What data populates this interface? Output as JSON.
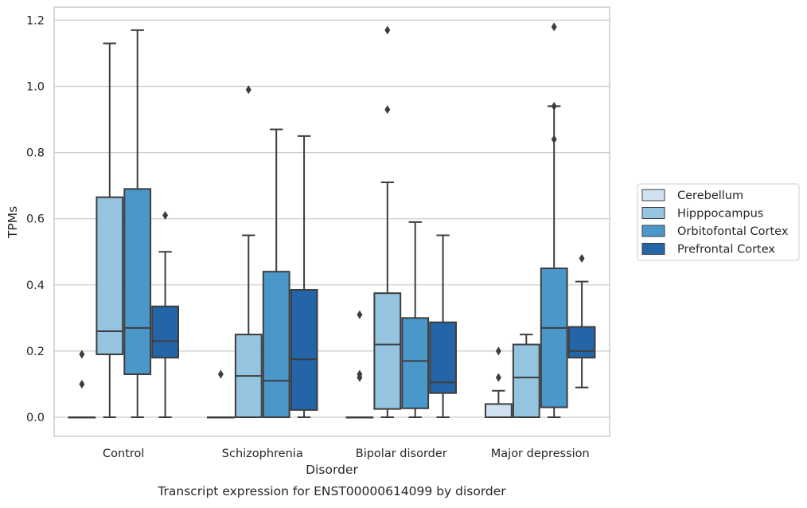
{
  "chart_data": {
    "type": "boxplot",
    "title": "Transcript expression for ENST00000614099 by disorder",
    "xlabel": "Disorder",
    "ylabel": "TPMs",
    "ylim": [
      -0.055,
      1.24
    ],
    "yticks": [
      "0.0",
      "0.2",
      "0.4",
      "0.6",
      "0.8",
      "1.0",
      "1.2"
    ],
    "grid": "horizontal",
    "legend_position": "right",
    "categories": [
      "Control",
      "Schizophrenia",
      "Bipolar disorder",
      "Major depression"
    ],
    "series": [
      {
        "name": "Cerebellum",
        "color": "#d0e1f2",
        "boxes": [
          {
            "min": 0,
            "q1": 0,
            "median": 0,
            "q3": 0,
            "max": 0,
            "outliers": [
              0.19,
              0.1
            ]
          },
          {
            "min": 0,
            "q1": 0,
            "median": 0,
            "q3": 0,
            "max": 0,
            "outliers": [
              0.13
            ]
          },
          {
            "min": 0,
            "q1": 0,
            "median": 0,
            "q3": 0,
            "max": 0,
            "outliers": [
              0.31,
              0.13,
              0.12
            ]
          },
          {
            "min": 0,
            "q1": 0,
            "median": 0,
            "q3": 0.04,
            "max": 0.08,
            "outliers": [
              0.2,
              0.12
            ]
          }
        ]
      },
      {
        "name": "Hipppocampus",
        "color": "#94c4df",
        "boxes": [
          {
            "min": 0,
            "q1": 0.19,
            "median": 0.26,
            "q3": 0.665,
            "max": 1.13,
            "outliers": []
          },
          {
            "min": 0,
            "q1": 0,
            "median": 0.125,
            "q3": 0.25,
            "max": 0.55,
            "outliers": [
              0.99
            ]
          },
          {
            "min": 0,
            "q1": 0.025,
            "median": 0.22,
            "q3": 0.375,
            "max": 0.71,
            "outliers": [
              1.17,
              0.93
            ]
          },
          {
            "min": 0,
            "q1": 0,
            "median": 0.12,
            "q3": 0.22,
            "max": 0.25,
            "outliers": []
          }
        ]
      },
      {
        "name": "Orbitofontal Cortex",
        "color": "#4a98c9",
        "boxes": [
          {
            "min": 0,
            "q1": 0.13,
            "median": 0.27,
            "q3": 0.69,
            "max": 1.17,
            "outliers": []
          },
          {
            "min": 0,
            "q1": 0,
            "median": 0.11,
            "q3": 0.44,
            "max": 0.87,
            "outliers": []
          },
          {
            "min": 0,
            "q1": 0.027,
            "median": 0.17,
            "q3": 0.3,
            "max": 0.59,
            "outliers": []
          },
          {
            "min": 0,
            "q1": 0.03,
            "median": 0.27,
            "q3": 0.45,
            "max": 0.94,
            "outliers": [
              1.18,
              0.94,
              0.84
            ]
          }
        ]
      },
      {
        "name": "Prefrontal Cortex",
        "color": "#2465a8",
        "boxes": [
          {
            "min": 0,
            "q1": 0.18,
            "median": 0.23,
            "q3": 0.335,
            "max": 0.5,
            "outliers": [
              0.61
            ]
          },
          {
            "min": 0,
            "q1": 0.022,
            "median": 0.175,
            "q3": 0.385,
            "max": 0.85,
            "outliers": []
          },
          {
            "min": 0,
            "q1": 0.073,
            "median": 0.105,
            "q3": 0.287,
            "max": 0.55,
            "outliers": []
          },
          {
            "min": 0.09,
            "q1": 0.18,
            "median": 0.2,
            "q3": 0.273,
            "max": 0.41,
            "outliers": [
              0.48
            ]
          }
        ]
      }
    ]
  }
}
